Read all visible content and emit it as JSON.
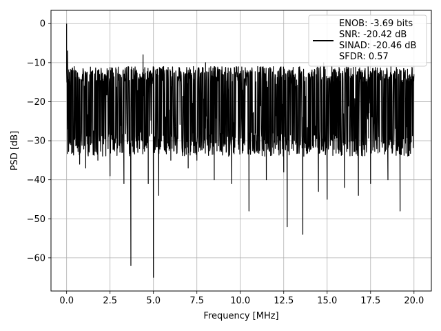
{
  "chart_data": {
    "type": "line",
    "xlabel": "Frequency [MHz]",
    "ylabel": "PSD [dB]",
    "xlim": [
      -0.9,
      21.0
    ],
    "ylim": [
      -68.5,
      3.4
    ],
    "xticks": [
      0.0,
      2.5,
      5.0,
      7.5,
      10.0,
      12.5,
      15.0,
      17.5,
      20.0
    ],
    "xtick_labels": [
      "0.0",
      "2.5",
      "5.0",
      "7.5",
      "10.0",
      "12.5",
      "15.0",
      "17.5",
      "20.0"
    ],
    "yticks": [
      0,
      -10,
      -20,
      -30,
      -40,
      -50,
      -60
    ],
    "ytick_labels": [
      "0",
      "−10",
      "−20",
      "−30",
      "−40",
      "−50",
      "−60"
    ],
    "grid": true,
    "legend_position": "top-right",
    "legend_lines": [
      "ENOB: -3.69 bits",
      "SNR: -20.42 dB",
      "SINAD: -20.46 dB",
      "SFDR: 0.57"
    ],
    "series": [
      {
        "color": "#000000",
        "noise_floor": {
          "min_db": -28,
          "max_db": -13
        },
        "x": [
          0.0,
          0.03,
          0.06,
          0.1,
          0.2,
          0.35,
          0.5,
          0.75,
          1.0,
          1.1,
          1.4,
          1.8,
          2.4,
          2.5,
          3.0,
          3.3,
          3.7,
          4.1,
          4.4,
          4.7,
          5.0,
          5.3,
          5.8,
          6.0,
          6.5,
          7.0,
          7.3,
          7.5,
          8.0,
          8.5,
          9.0,
          9.5,
          10.0,
          10.5,
          11.0,
          11.5,
          12.0,
          12.5,
          12.7,
          13.0,
          13.6,
          14.0,
          14.5,
          14.8,
          15.0,
          15.5,
          16.0,
          16.5,
          16.8,
          17.0,
          17.5,
          18.0,
          18.5,
          19.0,
          19.2,
          19.5,
          20.0
        ],
        "y": [
          0.0,
          -15,
          -7,
          -27,
          -18,
          -33,
          -12,
          -36,
          -16,
          -37,
          -13,
          -35,
          -12,
          -39,
          -13,
          -41,
          -62,
          -33,
          -8,
          -41,
          -65,
          -44,
          -12,
          -35,
          -14,
          -37,
          -11,
          -35,
          -10,
          -40,
          -13,
          -41,
          -15,
          -48,
          -11,
          -40,
          -13,
          -38,
          -52,
          -12,
          -54,
          -13,
          -43,
          -10,
          -45,
          -12,
          -42,
          -13,
          -44,
          -12,
          -41,
          -13,
          -40,
          -14,
          -48,
          -12,
          -13
        ]
      }
    ]
  }
}
